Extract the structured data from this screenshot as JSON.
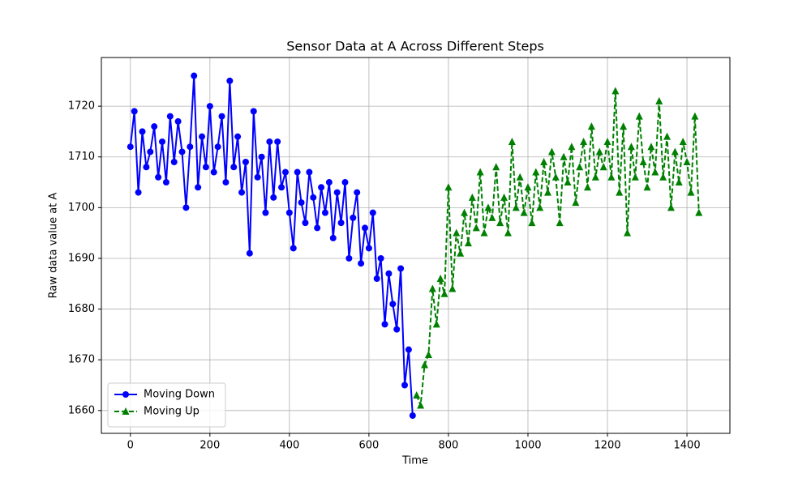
{
  "chart_data": {
    "type": "line",
    "title": "Sensor Data at A Across Different Steps",
    "x_label": "Time",
    "y_label": "Raw data value at A",
    "xlim": [
      -73,
      1508
    ],
    "ylim": [
      1655.5,
      1729.6
    ],
    "xticks": [
      0,
      200,
      400,
      600,
      800,
      1000,
      1200,
      1400
    ],
    "yticks": [
      1660,
      1670,
      1680,
      1690,
      1700,
      1710,
      1720
    ],
    "grid": true,
    "legend": "lower left",
    "series": [
      {
        "name": "Moving Down",
        "color": "#0000ff",
        "marker": "circle",
        "linestyle": "solid",
        "x": [
          0,
          10,
          20,
          30,
          40,
          50,
          60,
          70,
          80,
          90,
          100,
          110,
          120,
          130,
          140,
          150,
          160,
          170,
          180,
          190,
          200,
          210,
          220,
          230,
          240,
          250,
          260,
          270,
          280,
          290,
          300,
          310,
          320,
          330,
          340,
          350,
          360,
          370,
          380,
          390,
          400,
          410,
          420,
          430,
          440,
          450,
          460,
          470,
          480,
          490,
          500,
          510,
          520,
          530,
          540,
          550,
          560,
          570,
          580,
          590,
          600,
          610,
          620,
          630,
          640,
          650,
          660,
          670,
          680,
          690,
          700,
          710
        ],
        "values": [
          1712,
          1719,
          1703,
          1715,
          1708,
          1711,
          1716,
          1706,
          1713,
          1705,
          1718,
          1709,
          1717,
          1711,
          1700,
          1712,
          1726,
          1704,
          1714,
          1708,
          1720,
          1707,
          1712,
          1718,
          1705,
          1725,
          1708,
          1714,
          1703,
          1709,
          1691,
          1719,
          1706,
          1710,
          1699,
          1713,
          1702,
          1713,
          1704,
          1707,
          1699,
          1692,
          1707,
          1701,
          1697,
          1707,
          1702,
          1696,
          1704,
          1699,
          1705,
          1694,
          1703,
          1697,
          1705,
          1690,
          1698,
          1703,
          1689,
          1696,
          1692,
          1699,
          1686,
          1690,
          1677,
          1687,
          1681,
          1676,
          1688,
          1665,
          1672,
          1659
        ]
      },
      {
        "name": "Moving Up",
        "color": "#008000",
        "marker": "triangle",
        "linestyle": "dashed",
        "x": [
          720,
          730,
          740,
          750,
          760,
          770,
          780,
          790,
          800,
          810,
          820,
          830,
          840,
          850,
          860,
          870,
          880,
          890,
          900,
          910,
          920,
          930,
          940,
          950,
          960,
          970,
          980,
          990,
          1000,
          1010,
          1020,
          1030,
          1040,
          1050,
          1060,
          1070,
          1080,
          1090,
          1100,
          1110,
          1120,
          1130,
          1140,
          1150,
          1160,
          1170,
          1180,
          1190,
          1200,
          1210,
          1220,
          1230,
          1240,
          1250,
          1260,
          1270,
          1280,
          1290,
          1300,
          1310,
          1320,
          1330,
          1340,
          1350,
          1360,
          1370,
          1380,
          1390,
          1400,
          1410,
          1420,
          1430
        ],
        "values": [
          1663,
          1661,
          1669,
          1671,
          1684,
          1677,
          1686,
          1683,
          1704,
          1684,
          1695,
          1691,
          1699,
          1693,
          1702,
          1696,
          1707,
          1695,
          1700,
          1698,
          1708,
          1697,
          1702,
          1695,
          1713,
          1700,
          1706,
          1699,
          1704,
          1697,
          1707,
          1700,
          1709,
          1703,
          1711,
          1706,
          1697,
          1710,
          1705,
          1712,
          1701,
          1708,
          1713,
          1704,
          1716,
          1706,
          1711,
          1708,
          1713,
          1706,
          1723,
          1703,
          1716,
          1695,
          1712,
          1706,
          1718,
          1709,
          1704,
          1712,
          1707,
          1721,
          1706,
          1714,
          1700,
          1711,
          1705,
          1713,
          1709,
          1703,
          1718,
          1699
        ]
      }
    ]
  }
}
